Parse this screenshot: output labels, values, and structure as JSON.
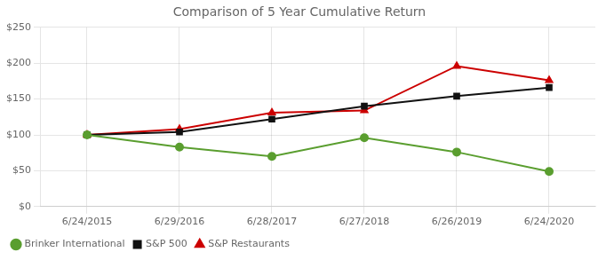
{
  "chart_data": {
    "type": "line",
    "title": "Comparison of 5 Year Cumulative Return",
    "categories": [
      "6/24/2015",
      "6/29/2016",
      "6/28/2017",
      "6/27/2018",
      "6/26/2019",
      "6/24/2020"
    ],
    "series": [
      {
        "name": "Brinker International",
        "color": "#5a9e2f",
        "marker": "circle",
        "values": [
          100,
          83,
          70,
          96,
          76,
          49
        ]
      },
      {
        "name": "S&P 500",
        "color": "#111111",
        "marker": "square",
        "values": [
          100,
          104,
          122,
          140,
          154,
          166
        ]
      },
      {
        "name": "S&P Restaurants",
        "color": "#cc0000",
        "marker": "triangle",
        "values": [
          100,
          108,
          131,
          134,
          196,
          176
        ]
      }
    ],
    "ylim": [
      0,
      250
    ],
    "yticks": [
      {
        "value": 0,
        "label": "$0"
      },
      {
        "value": 50,
        "label": "$50"
      },
      {
        "value": 100,
        "label": "$100"
      },
      {
        "value": 150,
        "label": "$150"
      },
      {
        "value": 200,
        "label": "$200"
      },
      {
        "value": 250,
        "label": "$250"
      }
    ],
    "grid": true,
    "legend": "bottom"
  }
}
